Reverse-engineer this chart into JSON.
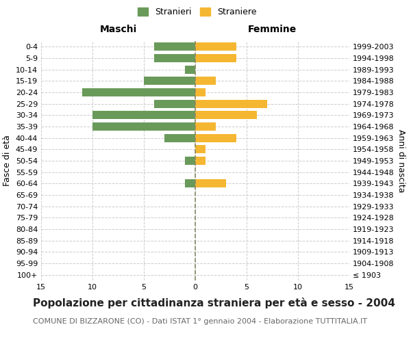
{
  "age_groups": [
    "100+",
    "95-99",
    "90-94",
    "85-89",
    "80-84",
    "75-79",
    "70-74",
    "65-69",
    "60-64",
    "55-59",
    "50-54",
    "45-49",
    "40-44",
    "35-39",
    "30-34",
    "25-29",
    "20-24",
    "15-19",
    "10-14",
    "5-9",
    "0-4"
  ],
  "birth_years": [
    "≤ 1903",
    "1904-1908",
    "1909-1913",
    "1914-1918",
    "1919-1923",
    "1924-1928",
    "1929-1933",
    "1934-1938",
    "1939-1943",
    "1944-1948",
    "1949-1953",
    "1954-1958",
    "1959-1963",
    "1964-1968",
    "1969-1973",
    "1974-1978",
    "1979-1983",
    "1984-1988",
    "1989-1993",
    "1994-1998",
    "1999-2003"
  ],
  "males": [
    0,
    0,
    0,
    0,
    0,
    0,
    0,
    0,
    1,
    0,
    1,
    0,
    3,
    10,
    10,
    4,
    11,
    5,
    1,
    4,
    4
  ],
  "females": [
    0,
    0,
    0,
    0,
    0,
    0,
    0,
    0,
    3,
    0,
    1,
    1,
    4,
    2,
    6,
    7,
    1,
    2,
    0,
    4,
    4
  ],
  "male_color": "#6a9a5a",
  "female_color": "#f5b731",
  "center_line_color": "#888866",
  "grid_color": "#cccccc",
  "background_color": "#ffffff",
  "title": "Popolazione per cittadinanza straniera per età e sesso - 2004",
  "subtitle": "COMUNE DI BIZZARONE (CO) - Dati ISTAT 1° gennaio 2004 - Elaborazione TUTTITALIA.IT",
  "xlabel_left": "Maschi",
  "xlabel_right": "Femmine",
  "ylabel_left": "Fasce di età",
  "ylabel_right": "Anni di nascita",
  "legend_male": "Stranieri",
  "legend_female": "Straniere",
  "xlim": 15,
  "title_fontsize": 11,
  "subtitle_fontsize": 8,
  "tick_fontsize": 8,
  "label_fontsize": 9
}
